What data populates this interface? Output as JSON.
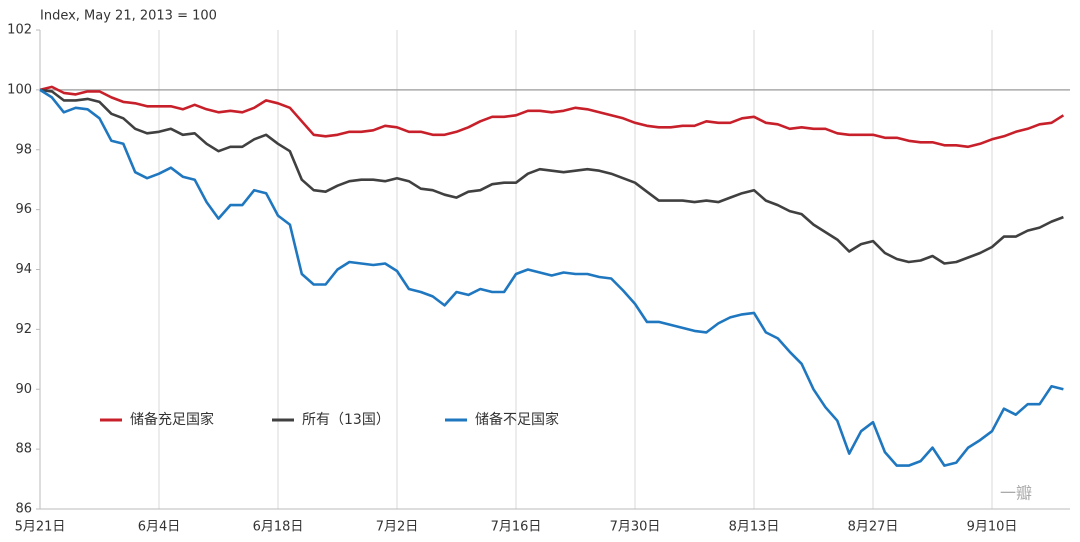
{
  "chart_data": {
    "type": "line",
    "y_label": "Index, May 21, 2013 = 100",
    "categories": [
      "5月21日",
      null,
      null,
      null,
      null,
      null,
      null,
      null,
      null,
      null,
      "6月4日",
      null,
      null,
      null,
      null,
      null,
      null,
      null,
      null,
      null,
      "6月18日",
      null,
      null,
      null,
      null,
      null,
      null,
      null,
      null,
      null,
      "7月2日",
      null,
      null,
      null,
      null,
      null,
      null,
      null,
      null,
      null,
      "7月16日",
      null,
      null,
      null,
      null,
      null,
      null,
      null,
      null,
      null,
      "7月30日",
      null,
      null,
      null,
      null,
      null,
      null,
      null,
      null,
      null,
      "8月13日",
      null,
      null,
      null,
      null,
      null,
      null,
      null,
      null,
      null,
      "8月27日",
      null,
      null,
      null,
      null,
      null,
      null,
      null,
      null,
      null,
      "9月10日",
      null,
      null,
      null,
      null,
      null,
      null
    ],
    "series": [
      {
        "name": "储备充足国家",
        "color": "#c8202a",
        "values": [
          100,
          100.1,
          99.9,
          99.85,
          99.95,
          99.95,
          99.75,
          99.6,
          99.55,
          99.45,
          99.45,
          99.45,
          99.35,
          99.5,
          99.35,
          99.25,
          99.3,
          99.25,
          99.4,
          99.65,
          99.55,
          99.4,
          98.95,
          98.5,
          98.45,
          98.5,
          98.6,
          98.6,
          98.65,
          98.8,
          98.75,
          98.6,
          98.6,
          98.5,
          98.5,
          98.6,
          98.75,
          98.95,
          99.1,
          99.1,
          99.15,
          99.3,
          99.3,
          99.25,
          99.3,
          99.4,
          99.35,
          99.25,
          99.15,
          99.05,
          98.9,
          98.8,
          98.75,
          98.75,
          98.8,
          98.8,
          98.95,
          98.9,
          98.9,
          99.05,
          99.1,
          98.9,
          98.85,
          98.7,
          98.75,
          98.7,
          98.7,
          98.55,
          98.5,
          98.5,
          98.5,
          98.4,
          98.4,
          98.3,
          98.25,
          98.25,
          98.15,
          98.15,
          98.1,
          98.2,
          98.35,
          98.45,
          98.6,
          98.7,
          98.85,
          98.9,
          99.15
        ]
      },
      {
        "name": "所有（13国）",
        "color": "#404040",
        "values": [
          100,
          99.95,
          99.65,
          99.65,
          99.7,
          99.6,
          99.2,
          99.05,
          98.7,
          98.55,
          98.6,
          98.7,
          98.5,
          98.55,
          98.2,
          97.95,
          98.1,
          98.1,
          98.35,
          98.5,
          98.2,
          97.95,
          97.0,
          96.65,
          96.6,
          96.8,
          96.95,
          97.0,
          97.0,
          96.95,
          97.05,
          96.95,
          96.7,
          96.65,
          96.5,
          96.4,
          96.6,
          96.65,
          96.85,
          96.9,
          96.9,
          97.2,
          97.35,
          97.3,
          97.25,
          97.3,
          97.35,
          97.3,
          97.2,
          97.05,
          96.9,
          96.6,
          96.3,
          96.3,
          96.3,
          96.25,
          96.3,
          96.25,
          96.4,
          96.55,
          96.65,
          96.3,
          96.15,
          95.95,
          95.85,
          95.5,
          95.25,
          95.0,
          94.6,
          94.85,
          94.95,
          94.55,
          94.35,
          94.25,
          94.3,
          94.45,
          94.2,
          94.25,
          94.4,
          94.55,
          94.75,
          95.1,
          95.1,
          95.3,
          95.4,
          95.6,
          95.75
        ]
      },
      {
        "name": "储备不足国家",
        "color": "#1f77c0",
        "values": [
          100,
          99.75,
          99.25,
          99.4,
          99.35,
          99.05,
          98.3,
          98.2,
          97.25,
          97.05,
          97.2,
          97.4,
          97.1,
          97.0,
          96.25,
          95.7,
          96.15,
          96.15,
          96.65,
          96.55,
          95.8,
          95.5,
          93.85,
          93.5,
          93.5,
          94.0,
          94.25,
          94.2,
          94.15,
          94.2,
          93.95,
          93.35,
          93.25,
          93.1,
          92.8,
          93.25,
          93.15,
          93.35,
          93.25,
          93.25,
          93.85,
          94.0,
          93.9,
          93.8,
          93.9,
          93.85,
          93.85,
          93.75,
          93.7,
          93.3,
          92.85,
          92.25,
          92.25,
          92.15,
          92.05,
          91.95,
          91.9,
          92.2,
          92.4,
          92.5,
          92.55,
          91.9,
          91.7,
          91.25,
          90.85,
          90.0,
          89.4,
          88.95,
          87.85,
          88.6,
          88.9,
          87.9,
          87.45,
          87.45,
          87.6,
          88.05,
          87.45,
          87.55,
          88.05,
          88.3,
          88.6,
          89.35,
          89.15,
          89.5,
          89.5,
          90.1,
          90.0
        ]
      }
    ],
    "ylim": [
      86,
      102
    ],
    "yticks": [
      86,
      88,
      90,
      92,
      94,
      96,
      98,
      100,
      102
    ],
    "reference_line": 100,
    "legend": "lower-left",
    "watermark": "一瓣"
  }
}
